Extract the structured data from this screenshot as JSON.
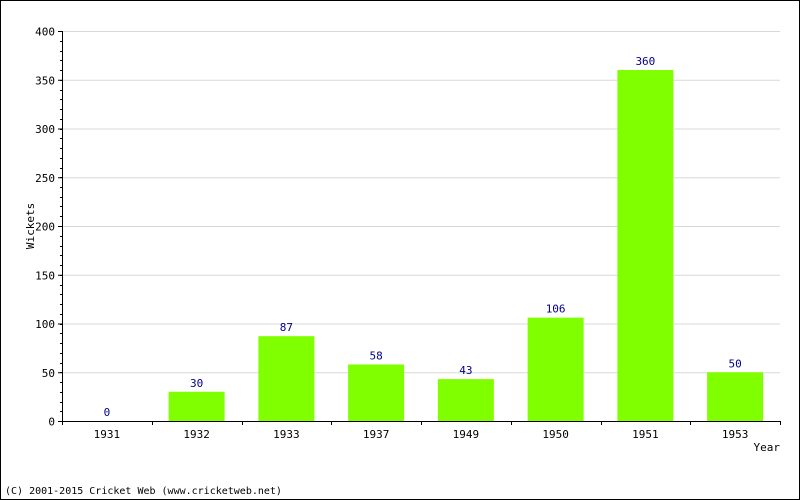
{
  "chart_data": {
    "type": "bar",
    "categories": [
      "1931",
      "1932",
      "1933",
      "1937",
      "1949",
      "1950",
      "1951",
      "1953"
    ],
    "values": [
      0,
      30,
      87,
      58,
      43,
      106,
      360,
      50
    ],
    "xlabel": "Year",
    "ylabel": "Wickets",
    "ylim": [
      0,
      400
    ],
    "yticks": [
      0,
      50,
      100,
      150,
      200,
      250,
      300,
      350,
      400
    ],
    "grid": true,
    "colors": {
      "bar": "#80ff00",
      "data_label": "#00008b",
      "grid": "#d8d8d8",
      "axis": "#000000"
    }
  },
  "footer": {
    "copyright": "(C) 2001-2015 Cricket Web (www.cricketweb.net)"
  }
}
